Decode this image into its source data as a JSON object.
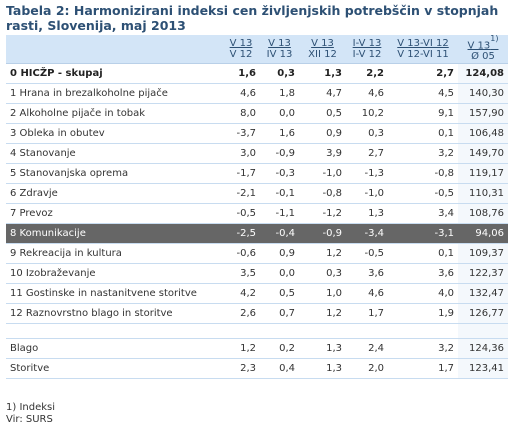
{
  "title": "Tabela 2: Harmonizirani indeksi cen življenjskih potrebščin v stopnjah rasti, Slovenija, maj 2013",
  "headers": [
    {
      "top": "V 13",
      "bottom": "V 12",
      "sup": ""
    },
    {
      "top": "V 13",
      "bottom": "IV 13",
      "sup": ""
    },
    {
      "top": "V 13",
      "bottom": "XII 12",
      "sup": ""
    },
    {
      "top": "I-V 13",
      "bottom": "I-V 12",
      "sup": ""
    },
    {
      "top": "V 13-VI 12",
      "bottom": "V 12-VI 11",
      "sup": ""
    },
    {
      "top": "V 13",
      "bottom": "Ø 05",
      "sup": "1)"
    }
  ],
  "rows": [
    {
      "label": "0 HICŽP - skupaj",
      "values": [
        "1,6",
        "0,3",
        "1,3",
        "2,2",
        "2,7",
        "124,08"
      ]
    },
    {
      "label": "1 Hrana in brezalkoholne pijače",
      "values": [
        "4,6",
        "1,8",
        "4,7",
        "4,6",
        "4,5",
        "140,30"
      ]
    },
    {
      "label": "2 Alkoholne pijače in tobak",
      "values": [
        "8,0",
        "0,0",
        "0,5",
        "10,2",
        "9,1",
        "157,90"
      ]
    },
    {
      "label": "3 Obleka in obutev",
      "values": [
        "-3,7",
        "1,6",
        "0,9",
        "0,3",
        "0,1",
        "106,48"
      ]
    },
    {
      "label": "4 Stanovanje",
      "values": [
        "3,0",
        "-0,9",
        "3,9",
        "2,7",
        "3,2",
        "149,70"
      ]
    },
    {
      "label": "5 Stanovanjska oprema",
      "values": [
        "-1,7",
        "-0,3",
        "-1,0",
        "-1,3",
        "-0,8",
        "119,17"
      ]
    },
    {
      "label": "6 Zdravje",
      "values": [
        "-2,1",
        "-0,1",
        "-0,8",
        "-1,0",
        "-0,5",
        "110,31"
      ]
    },
    {
      "label": "7 Prevoz",
      "values": [
        "-0,5",
        "-1,1",
        "-1,2",
        "1,3",
        "3,4",
        "108,76"
      ]
    },
    {
      "label": "8 Komunikacije",
      "values": [
        "-2,5",
        "-0,4",
        "-0,9",
        "-3,4",
        "-3,1",
        "94,06"
      ]
    },
    {
      "label": "9 Rekreacija in kultura",
      "values": [
        "-0,6",
        "0,9",
        "1,2",
        "-0,5",
        "0,1",
        "109,37"
      ]
    },
    {
      "label": "10 Izobraževanje",
      "values": [
        "3,5",
        "0,0",
        "0,3",
        "3,6",
        "3,6",
        "122,37"
      ]
    },
    {
      "label": "11 Gostinske in nastanitvene storitve",
      "values": [
        "4,2",
        "0,5",
        "1,0",
        "4,6",
        "4,0",
        "132,47"
      ]
    },
    {
      "label": "12 Raznovrstno blago in storitve",
      "values": [
        "2,6",
        "0,7",
        "1,2",
        "1,7",
        "1,9",
        "126,77"
      ]
    },
    {
      "label": "Blago",
      "values": [
        "1,2",
        "0,2",
        "1,3",
        "2,4",
        "3,2",
        "124,36"
      ]
    },
    {
      "label": "Storitve",
      "values": [
        "2,3",
        "0,4",
        "1,3",
        "2,0",
        "1,7",
        "123,41"
      ]
    }
  ],
  "footnotes": {
    "note": "1) Indeksi",
    "source": "Vir: SURS"
  },
  "colors": {
    "title": "#2d5074",
    "header_bg": "#d3e5f7",
    "highlight_row_bg": "#666666",
    "row_border": "#c8dcf0"
  }
}
